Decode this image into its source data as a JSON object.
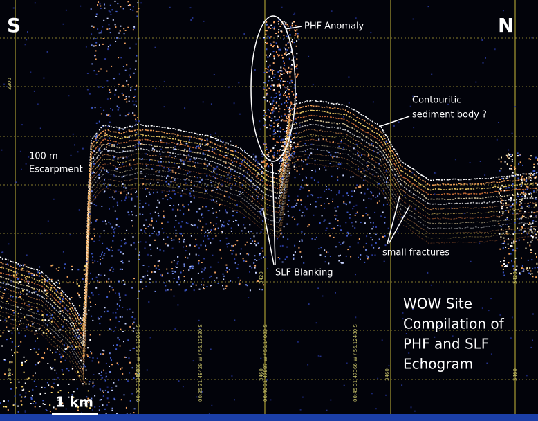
{
  "figure": {
    "direction_left": "S",
    "direction_right": "N",
    "annotations": {
      "phf_anomaly": "PHF Anomaly",
      "contouritic": [
        "Contouritic",
        "sediment body ?"
      ],
      "escarpment": [
        "100 m",
        "Escarpment"
      ],
      "slf_blanking": "SLF Blanking",
      "small_fractures": "small fractures"
    },
    "caption": [
      "WOW Site",
      "Compilation of",
      "PHF and SLF",
      "Echogram"
    ],
    "scale_bar": "1 km",
    "depth_labels": [
      "3300",
      "3460",
      "3420",
      "3460",
      "3460",
      "3460",
      "3420",
      "3460"
    ],
    "track_labels": [
      "00:30  31.48038 W / 56.12054 S",
      "00:35  31.48429 W / 56.13530 S",
      "00:40  31.47887 W / 56.14003 S",
      "00:45  31.47366 W / 56.12480 S"
    ]
  }
}
